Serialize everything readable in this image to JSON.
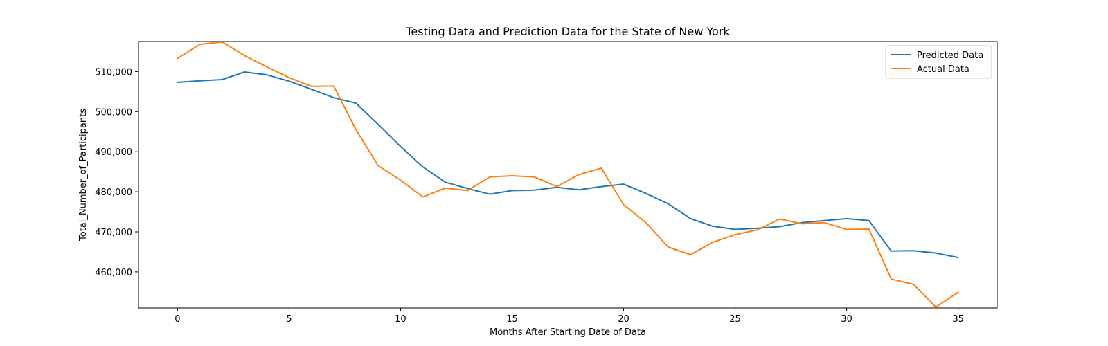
{
  "chart_data": {
    "type": "line",
    "title": "Testing Data and Prediction Data for the State of New York",
    "xlabel": "Months After Starting Date of Data",
    "ylabel": "Total_Number_of_Participants",
    "xlim": [
      -1.75,
      36.75
    ],
    "ylim": [
      451000,
      517500
    ],
    "xticks": [
      0,
      5,
      10,
      15,
      20,
      25,
      30,
      35
    ],
    "yticks": [
      460000,
      470000,
      480000,
      490000,
      500000,
      510000
    ],
    "ytick_labels": [
      "460,000",
      "470,000",
      "480,000",
      "490,000",
      "500,000",
      "510,000"
    ],
    "grid": false,
    "legend_position": "top-right",
    "x": [
      0,
      1,
      2,
      3,
      4,
      5,
      6,
      7,
      8,
      9,
      10,
      11,
      12,
      13,
      14,
      15,
      16,
      17,
      18,
      19,
      20,
      21,
      22,
      23,
      24,
      25,
      26,
      27,
      28,
      29,
      30,
      31,
      32,
      33,
      34,
      35
    ],
    "series": [
      {
        "name": "Predicted Data",
        "color": "#1f77b4",
        "values": [
          507300,
          507700,
          508000,
          509900,
          509200,
          507600,
          505600,
          503500,
          502100,
          496800,
          491300,
          486200,
          482400,
          480800,
          479400,
          480300,
          480400,
          481100,
          480500,
          481300,
          481900,
          479600,
          477000,
          473300,
          471400,
          470600,
          470900,
          471300,
          472300,
          472800,
          473300,
          472800,
          465200,
          465300,
          464700,
          463600
        ]
      },
      {
        "name": "Actual Data",
        "color": "#ff7f0e",
        "values": [
          513300,
          516800,
          517400,
          514000,
          511200,
          508500,
          506300,
          506400,
          495500,
          486500,
          482900,
          478700,
          480900,
          480300,
          483700,
          484000,
          483700,
          481300,
          484300,
          485900,
          476800,
          472300,
          466200,
          464300,
          467400,
          469300,
          470500,
          473200,
          472000,
          472300,
          470600,
          470700,
          458200,
          456900,
          451200,
          454900
        ]
      }
    ]
  }
}
